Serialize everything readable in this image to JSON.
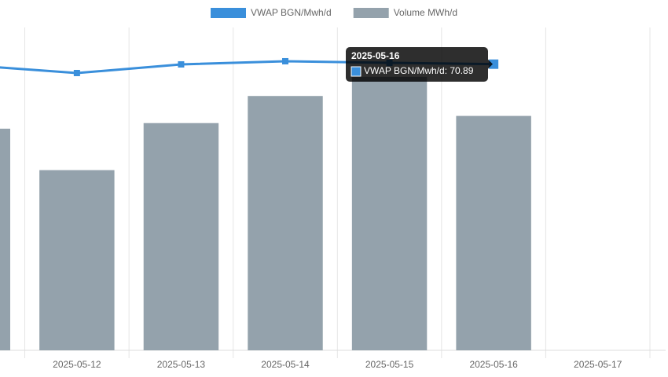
{
  "chart_data": {
    "type": "bar",
    "categories": [
      null,
      "2025-05-12",
      "2025-05-13",
      "2025-05-14",
      "2025-05-15",
      "2025-05-16",
      "2025-05-17"
    ],
    "series": [
      {
        "name": "VWAP BGN/Mwh/d",
        "type": "line",
        "axis": "y2",
        "color": "#3a8fdb",
        "values": [
          70.56,
          68.69,
          70.83,
          71.61,
          71.22,
          70.89,
          null
        ]
      },
      {
        "name": "Volume MWh/d",
        "type": "bar",
        "color": "#94a2ac",
        "values": [
          2780,
          2260,
          2850,
          3190,
          3430,
          2940,
          null
        ]
      }
    ],
    "ylim": [
      0,
      4000
    ],
    "y2lim": [
      0,
      79
    ],
    "grid": true,
    "legend": "top",
    "tooltip": {
      "category": 5,
      "series": 0
    }
  }
}
